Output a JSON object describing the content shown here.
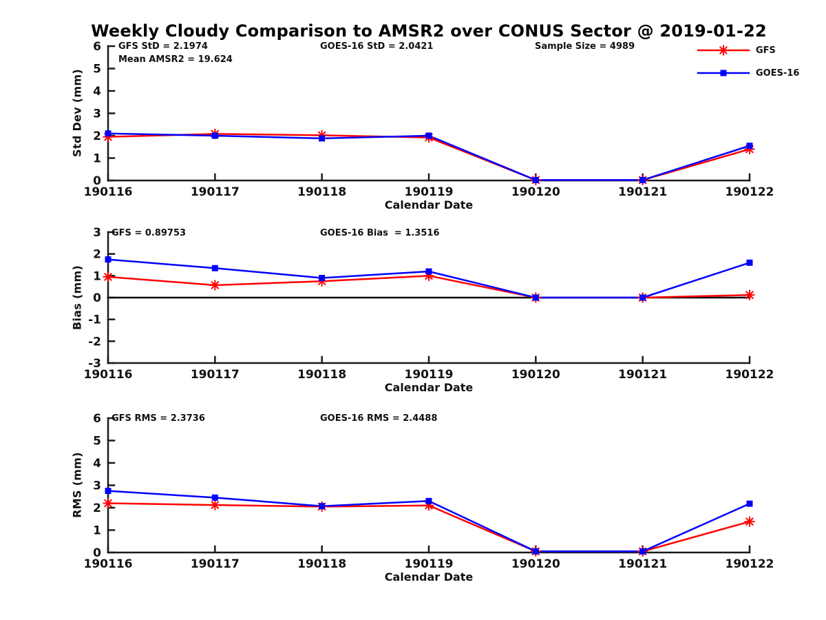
{
  "title": "Weekly Cloudy Comparison to AMSR2 over CONUS Sector @ 2019-01-22",
  "colors": {
    "gfs": "#ff0000",
    "goes16": "#0000ff",
    "axis": "#1a1a1a",
    "text": "#111111",
    "zero_line": "#000000"
  },
  "legend": {
    "entries": [
      {
        "label": "GFS",
        "color": "#ff0000",
        "marker": "asterisk"
      },
      {
        "label": "GOES-16",
        "color": "#0000ff",
        "marker": "square"
      }
    ]
  },
  "chart_data": [
    {
      "type": "line",
      "panel": "std-dev",
      "ylabel": "Std Dev (mm)",
      "xlabel": "Calendar Date",
      "ylim": [
        0,
        6
      ],
      "yticks": [
        0,
        1,
        2,
        3,
        4,
        5,
        6
      ],
      "categories": [
        "190116",
        "190117",
        "190118",
        "190119",
        "190120",
        "190121",
        "190122"
      ],
      "series": [
        {
          "name": "GFS",
          "color": "#ff0000",
          "marker": "asterisk",
          "values": [
            1.95,
            2.08,
            2.02,
            1.92,
            0.02,
            0.02,
            1.4
          ]
        },
        {
          "name": "GOES-16",
          "color": "#0000ff",
          "marker": "square",
          "values": [
            2.1,
            2.0,
            1.88,
            2.0,
            0.02,
            0.02,
            1.55
          ]
        }
      ],
      "annotations": [
        {
          "id": "gfs-std",
          "text": "GFS StD = 2.1974"
        },
        {
          "id": "mean-amsr2",
          "text": "Mean AMSR2 = 19.624"
        },
        {
          "id": "goes16-std",
          "text": "GOES-16 StD = 2.0421"
        },
        {
          "id": "sample-size",
          "text": "Sample Size = 4989"
        }
      ]
    },
    {
      "type": "line",
      "panel": "bias",
      "ylabel": "Bias (mm)",
      "xlabel": "Calendar Date",
      "ylim": [
        -3,
        3
      ],
      "yticks": [
        -3,
        -2,
        -1,
        0,
        1,
        2,
        3
      ],
      "zero_line": true,
      "categories": [
        "190116",
        "190117",
        "190118",
        "190119",
        "190120",
        "190121",
        "190122"
      ],
      "series": [
        {
          "name": "GFS",
          "color": "#ff0000",
          "marker": "asterisk",
          "values": [
            0.95,
            0.57,
            0.75,
            1.0,
            0.0,
            0.0,
            0.12
          ]
        },
        {
          "name": "GOES-16",
          "color": "#0000ff",
          "marker": "square",
          "values": [
            1.75,
            1.35,
            0.9,
            1.2,
            0.0,
            0.0,
            1.6
          ]
        }
      ],
      "annotations": [
        {
          "id": "gfs-bias",
          "text": "GFS = 0.89753"
        },
        {
          "id": "goes16-bias",
          "text": "GOES-16 Bias  = 1.3516"
        }
      ]
    },
    {
      "type": "line",
      "panel": "rms",
      "ylabel": "RMS (mm)",
      "xlabel": "Calendar Date",
      "ylim": [
        0,
        6
      ],
      "yticks": [
        0,
        1,
        2,
        3,
        4,
        5,
        6
      ],
      "categories": [
        "190116",
        "190117",
        "190118",
        "190119",
        "190120",
        "190121",
        "190122"
      ],
      "series": [
        {
          "name": "GFS",
          "color": "#ff0000",
          "marker": "asterisk",
          "values": [
            2.2,
            2.12,
            2.05,
            2.1,
            0.05,
            0.05,
            1.38
          ]
        },
        {
          "name": "GOES-16",
          "color": "#0000ff",
          "marker": "square",
          "values": [
            2.75,
            2.45,
            2.07,
            2.3,
            0.05,
            0.05,
            2.18
          ]
        }
      ],
      "annotations": [
        {
          "id": "gfs-rms",
          "text": "GFS RMS = 2.3736"
        },
        {
          "id": "goes16-rms",
          "text": "GOES-16 RMS = 2.4488"
        }
      ]
    }
  ]
}
